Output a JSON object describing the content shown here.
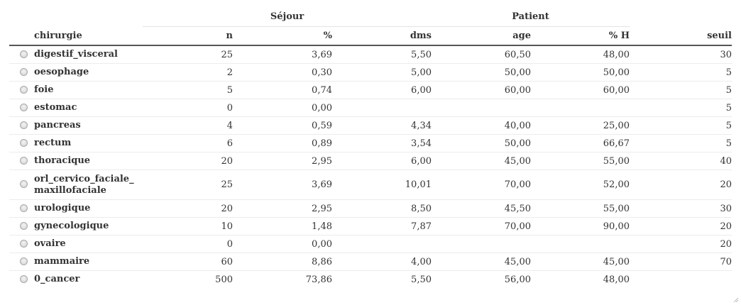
{
  "groups": {
    "sejour": "Séjour",
    "patient": "Patient"
  },
  "columns": [
    "chirurgie",
    "n",
    "%",
    "dms",
    "age",
    "% H",
    "seuil"
  ],
  "rows": [
    {
      "chirurgie": "digestif_visceral",
      "n": "25",
      "pct": "3,69",
      "dms": "5,50",
      "age": "60,50",
      "pct_h": "48,00",
      "seuil": "30"
    },
    {
      "chirurgie": "oesophage",
      "n": "2",
      "pct": "0,30",
      "dms": "5,00",
      "age": "50,00",
      "pct_h": "50,00",
      "seuil": "5"
    },
    {
      "chirurgie": "foie",
      "n": "5",
      "pct": "0,74",
      "dms": "6,00",
      "age": "60,00",
      "pct_h": "60,00",
      "seuil": "5"
    },
    {
      "chirurgie": "estomac",
      "n": "0",
      "pct": "0,00",
      "dms": "",
      "age": "",
      "pct_h": "",
      "seuil": "5"
    },
    {
      "chirurgie": "pancreas",
      "n": "4",
      "pct": "0,59",
      "dms": "4,34",
      "age": "40,00",
      "pct_h": "25,00",
      "seuil": "5"
    },
    {
      "chirurgie": "rectum",
      "n": "6",
      "pct": "0,89",
      "dms": "3,54",
      "age": "50,00",
      "pct_h": "66,67",
      "seuil": "5"
    },
    {
      "chirurgie": "thoracique",
      "n": "20",
      "pct": "2,95",
      "dms": "6,00",
      "age": "45,00",
      "pct_h": "55,00",
      "seuil": "40"
    },
    {
      "chirurgie": "orl_cervico_faciale_\nmaxillofaciale",
      "n": "25",
      "pct": "3,69",
      "dms": "10,01",
      "age": "70,00",
      "pct_h": "52,00",
      "seuil": "20"
    },
    {
      "chirurgie": "urologique",
      "n": "20",
      "pct": "2,95",
      "dms": "8,50",
      "age": "45,50",
      "pct_h": "55,00",
      "seuil": "30"
    },
    {
      "chirurgie": "gynecologique",
      "n": "10",
      "pct": "1,48",
      "dms": "7,87",
      "age": "70,00",
      "pct_h": "90,00",
      "seuil": "20"
    },
    {
      "chirurgie": "ovaire",
      "n": "0",
      "pct": "0,00",
      "dms": "",
      "age": "",
      "pct_h": "",
      "seuil": "20"
    },
    {
      "chirurgie": "mammaire",
      "n": "60",
      "pct": "8,86",
      "dms": "4,00",
      "age": "45,00",
      "pct_h": "45,00",
      "seuil": "70"
    },
    {
      "chirurgie": "0_cancer",
      "n": "500",
      "pct": "73,86",
      "dms": "5,50",
      "age": "56,00",
      "pct_h": "48,00",
      "seuil": ""
    }
  ]
}
